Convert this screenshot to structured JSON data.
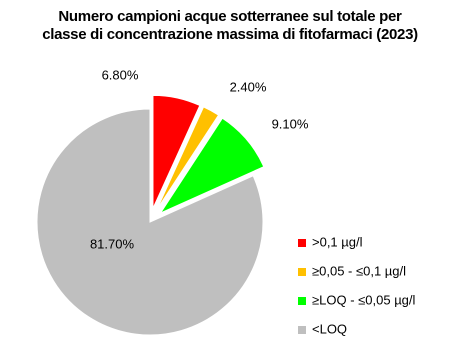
{
  "chart_data": {
    "type": "pie",
    "title": "Numero campioni acque sotterranee sul totale per classe di concentrazione massima di fitofarmaci (2023)",
    "categories": [
      ">0,1 µg/l",
      "≥0,05 - ≤0,1 µg/l",
      "≥LOQ - ≤0,05 µg/l",
      "<LOQ"
    ],
    "values": [
      6.8,
      2.4,
      9.1,
      81.7
    ],
    "value_labels": [
      "6.80%",
      "2.40%",
      "9.10%",
      "81.70%"
    ],
    "colors": [
      "#ff0000",
      "#ffc000",
      "#00ff00",
      "#bfbfbf"
    ],
    "legend": "right"
  }
}
